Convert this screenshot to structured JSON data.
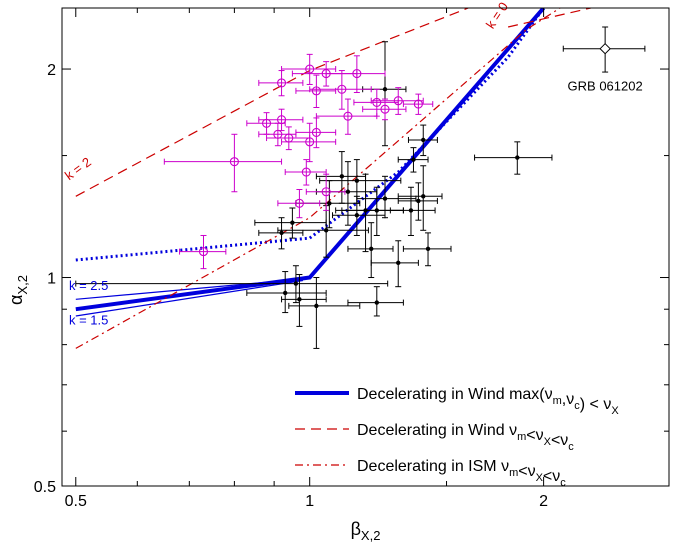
{
  "chart_data": {
    "type": "scatter",
    "x_scale": "log",
    "y_scale": "log",
    "xlim": [
      0.48,
      2.9
    ],
    "ylim": [
      0.5,
      2.45
    ],
    "xlabel": {
      "main": "β",
      "sub": "X,2"
    },
    "ylabel": {
      "main": "α",
      "sub": "X,2"
    },
    "x_ticks": [
      {
        "value": 0.5,
        "label": "0.5"
      },
      {
        "value": 1,
        "label": "1"
      },
      {
        "value": 2,
        "label": "2"
      }
    ],
    "x_minor_ticks": [
      0.6,
      0.7,
      0.8,
      0.9,
      1.5
    ],
    "y_ticks": [
      {
        "value": 0.5,
        "label": "0.5"
      },
      {
        "value": 1,
        "label": "1"
      },
      {
        "value": 2,
        "label": "2"
      }
    ],
    "y_minor_ticks": [
      0.6,
      0.7,
      0.8,
      0.9,
      1.5
    ],
    "colors": {
      "black": "#000000",
      "magenta": "#cc00cc",
      "blue": "#0000dd",
      "red": "#cc0000"
    },
    "models": [
      {
        "name": "Wind-max-thick",
        "style": "solid-thick",
        "color": "#0000dd",
        "points": [
          [
            0.5,
            0.9
          ],
          [
            1.0,
            1.0
          ],
          [
            2.0,
            2.45
          ]
        ]
      },
      {
        "name": "Wind-k2.5",
        "style": "solid-thin",
        "color": "#0000dd",
        "points": [
          [
            0.5,
            0.93
          ],
          [
            0.98,
            0.995
          ]
        ]
      },
      {
        "name": "Wind-k1.5",
        "style": "solid-thin",
        "color": "#0000dd",
        "points": [
          [
            0.5,
            0.88
          ],
          [
            0.98,
            0.99
          ]
        ]
      },
      {
        "name": "ISM-max-dotted",
        "style": "dotted",
        "color": "#0000dd",
        "points": [
          [
            0.5,
            1.06
          ],
          [
            1.0,
            1.14
          ],
          [
            1.3,
            1.42
          ],
          [
            1.8,
            2.08
          ],
          [
            2.0,
            2.45
          ]
        ]
      },
      {
        "name": "Wind-dashed-k2",
        "style": "dashed",
        "color": "#cc0000",
        "points": [
          [
            0.5,
            1.31
          ],
          [
            1.0,
            1.99
          ],
          [
            1.6,
            2.45
          ]
        ]
      },
      {
        "name": "Wind-dashed-k0",
        "style": "dashed",
        "color": "#cc0000",
        "points": [
          [
            1.8,
            2.3
          ],
          [
            2.3,
            2.45
          ]
        ]
      },
      {
        "name": "ISM-dashdot",
        "style": "dashdot",
        "color": "#cc0000",
        "points": [
          [
            0.5,
            0.79
          ],
          [
            1.0,
            1.22
          ],
          [
            1.9,
            2.28
          ],
          [
            2.1,
            2.45
          ]
        ]
      }
    ],
    "line_labels": [
      {
        "text": "k = 2",
        "color": "#cc0000",
        "x": 0.49,
        "y": 1.38,
        "rotate": -36
      },
      {
        "text": "k = 0",
        "color": "#cc0000",
        "x": 1.72,
        "y": 2.28,
        "rotate": -56
      },
      {
        "text": "k = 2.5",
        "color": "#0000dd",
        "x": 0.49,
        "y": 0.96,
        "rotate": 0
      },
      {
        "text": "k = 1.5",
        "color": "#0000dd",
        "x": 0.49,
        "y": 0.855,
        "rotate": 0
      }
    ],
    "series_black": [
      {
        "x": 0.93,
        "y": 0.95,
        "xerr": [
          0.1,
          0.12
        ],
        "yerr": [
          0.06,
          0.07
        ]
      },
      {
        "x": 0.96,
        "y": 0.98,
        "xerr": [
          0.46,
          0.3
        ],
        "yerr": [
          0.06,
          0.06
        ]
      },
      {
        "x": 1.02,
        "y": 0.91,
        "xerr": [
          0.08,
          0.14
        ],
        "yerr": [
          0.12,
          0.09
        ]
      },
      {
        "x": 0.97,
        "y": 0.93,
        "xerr": [
          0.05,
          0.08
        ],
        "yerr": [
          0.08,
          0.08
        ]
      },
      {
        "x": 1.22,
        "y": 0.92,
        "xerr": [
          0.1,
          0.1
        ],
        "yerr": [
          0.04,
          0.05
        ]
      },
      {
        "x": 0.92,
        "y": 1.16,
        "xerr": [
          0.06,
          0.06
        ],
        "yerr": [
          0.06,
          0.06
        ]
      },
      {
        "x": 0.95,
        "y": 1.2,
        "xerr": [
          0.1,
          0.1
        ],
        "yerr": [
          0.06,
          0.06
        ]
      },
      {
        "x": 1.06,
        "y": 1.28,
        "xerr": [
          0.1,
          0.1
        ],
        "yerr": [
          0.1,
          0.1
        ]
      },
      {
        "x": 1.1,
        "y": 1.4,
        "xerr": [
          0.08,
          0.08
        ],
        "yerr": [
          0.12,
          0.12
        ]
      },
      {
        "x": 1.12,
        "y": 1.33,
        "xerr": [
          0.1,
          0.1
        ],
        "yerr": [
          0.14,
          0.14
        ]
      },
      {
        "x": 1.15,
        "y": 1.38,
        "xerr": [
          0.12,
          0.16
        ],
        "yerr": [
          0.1,
          0.1
        ]
      },
      {
        "x": 1.18,
        "y": 1.25,
        "xerr": [
          0.1,
          0.14
        ],
        "yerr": [
          0.16,
          0.16
        ]
      },
      {
        "x": 1.2,
        "y": 1.1,
        "xerr": [
          0.08,
          0.08
        ],
        "yerr": [
          0.1,
          0.1
        ]
      },
      {
        "x": 1.22,
        "y": 1.25,
        "xerr": [
          0.12,
          0.1
        ],
        "yerr": [
          0.1,
          0.1
        ]
      },
      {
        "x": 1.25,
        "y": 1.3,
        "xerr": [
          0.1,
          0.12
        ],
        "yerr": [
          0.08,
          0.1
        ]
      },
      {
        "x": 1.3,
        "y": 1.05,
        "xerr": [
          0.1,
          0.08
        ],
        "yerr": [
          0.08,
          0.08
        ]
      },
      {
        "x": 1.35,
        "y": 1.25,
        "xerr": [
          0.08,
          0.1
        ],
        "yerr": [
          0.1,
          0.1
        ]
      },
      {
        "x": 1.38,
        "y": 1.29,
        "xerr": [
          0.08,
          0.08
        ],
        "yerr": [
          0.08,
          0.08
        ]
      },
      {
        "x": 1.4,
        "y": 1.31,
        "xerr": [
          0.1,
          0.08
        ],
        "yerr": [
          0.14,
          0.14
        ]
      },
      {
        "x": 1.36,
        "y": 1.48,
        "xerr": [
          0.06,
          0.06
        ],
        "yerr": [
          0.06,
          0.06
        ]
      },
      {
        "x": 1.42,
        "y": 1.1,
        "xerr": [
          0.1,
          0.1
        ],
        "yerr": [
          0.06,
          0.06
        ]
      },
      {
        "x": 1.4,
        "y": 1.58,
        "xerr": [
          0.06,
          0.06
        ],
        "yerr": [
          0.08,
          0.08
        ]
      },
      {
        "x": 1.25,
        "y": 1.87,
        "xerr": [
          0.08,
          0.08
        ],
        "yerr": [
          0.32,
          0.32
        ]
      },
      {
        "x": 1.85,
        "y": 1.49,
        "xerr": [
          0.22,
          0.2
        ],
        "yerr": [
          0.08,
          0.08
        ]
      },
      {
        "x": 1.15,
        "y": 1.23,
        "xerr": [
          0.08,
          0.1
        ],
        "yerr": [
          0.08,
          0.08
        ]
      },
      {
        "x": 1.05,
        "y": 1.17,
        "xerr": [
          0.14,
          0.14
        ],
        "yerr": [
          0.1,
          0.1
        ]
      }
    ],
    "series_magenta": [
      {
        "x": 0.73,
        "y": 1.09,
        "xerr": [
          0.05,
          0.05
        ],
        "yerr": [
          0.06,
          0.06
        ]
      },
      {
        "x": 0.8,
        "y": 1.47,
        "xerr": [
          0.15,
          0.12
        ],
        "yerr": [
          0.14,
          0.14
        ]
      },
      {
        "x": 0.88,
        "y": 1.67,
        "xerr": [
          0.05,
          0.05
        ],
        "yerr": [
          0.06,
          0.06
        ]
      },
      {
        "x": 0.91,
        "y": 1.61,
        "xerr": [
          0.05,
          0.05
        ],
        "yerr": [
          0.06,
          0.06
        ]
      },
      {
        "x": 0.92,
        "y": 1.69,
        "xerr": [
          0.06,
          0.06
        ],
        "yerr": [
          0.06,
          0.06
        ]
      },
      {
        "x": 0.92,
        "y": 1.91,
        "xerr": [
          0.06,
          0.06
        ],
        "yerr": [
          0.08,
          0.08
        ]
      },
      {
        "x": 0.94,
        "y": 1.59,
        "xerr": [
          0.06,
          0.06
        ],
        "yerr": [
          0.06,
          0.06
        ]
      },
      {
        "x": 0.97,
        "y": 1.28,
        "xerr": [
          0.06,
          0.06
        ],
        "yerr": [
          0.06,
          0.06
        ]
      },
      {
        "x": 0.99,
        "y": 1.42,
        "xerr": [
          0.06,
          0.06
        ],
        "yerr": [
          0.06,
          0.06
        ]
      },
      {
        "x": 1.0,
        "y": 1.57,
        "xerr": [
          0.08,
          0.08
        ],
        "yerr": [
          0.1,
          0.1
        ]
      },
      {
        "x": 1.0,
        "y": 2.0,
        "xerr": [
          0.08,
          0.08
        ],
        "yerr": [
          0.1,
          0.1
        ]
      },
      {
        "x": 1.02,
        "y": 1.62,
        "xerr": [
          0.06,
          0.06
        ],
        "yerr": [
          0.08,
          0.08
        ]
      },
      {
        "x": 1.02,
        "y": 1.86,
        "xerr": [
          0.06,
          0.06
        ],
        "yerr": [
          0.1,
          0.1
        ]
      },
      {
        "x": 1.05,
        "y": 1.33,
        "xerr": [
          0.06,
          0.06
        ],
        "yerr": [
          0.08,
          0.08
        ]
      },
      {
        "x": 1.05,
        "y": 1.97,
        "xerr": [
          0.1,
          0.1
        ],
        "yerr": [
          0.08,
          0.08
        ]
      },
      {
        "x": 1.1,
        "y": 1.87,
        "xerr": [
          0.1,
          0.1
        ],
        "yerr": [
          0.12,
          0.12
        ]
      },
      {
        "x": 1.12,
        "y": 1.71,
        "xerr": [
          0.1,
          0.1
        ],
        "yerr": [
          0.1,
          0.1
        ]
      },
      {
        "x": 1.15,
        "y": 1.97,
        "xerr": [
          0.1,
          0.1
        ],
        "yerr": [
          0.12,
          0.12
        ]
      },
      {
        "x": 1.22,
        "y": 1.79,
        "xerr": [
          0.08,
          0.08
        ],
        "yerr": [
          0.08,
          0.08
        ]
      },
      {
        "x": 1.25,
        "y": 1.75,
        "xerr": [
          0.08,
          0.08
        ],
        "yerr": [
          0.06,
          0.06
        ]
      },
      {
        "x": 1.3,
        "y": 1.8,
        "xerr": [
          0.1,
          0.1
        ],
        "yerr": [
          0.08,
          0.08
        ]
      },
      {
        "x": 1.38,
        "y": 1.78,
        "xerr": [
          0.06,
          0.06
        ],
        "yerr": [
          0.06,
          0.06
        ]
      }
    ],
    "grb_point": {
      "name": "GRB 061202",
      "x": 2.4,
      "y": 2.14,
      "xerr": [
        0.28,
        0.3
      ],
      "yerr": [
        0.16,
        0.16
      ],
      "color": "#000000"
    },
    "legend": {
      "placement": "bottom-right",
      "entries": [
        {
          "style": "solid-thick",
          "color": "#0000dd",
          "text": "Decelerating in Wind max(ν",
          "sub1": "m",
          "mid": ",ν",
          "sub2": "c",
          "tail": ") < ν",
          "sub3": "X",
          "end": ""
        },
        {
          "style": "dashed",
          "color": "#cc0000",
          "text": "Decelerating in Wind ν",
          "sub1": "m",
          "mid": "<ν",
          "sub2": "X",
          "tail": "<ν",
          "sub3": "c",
          "end": ""
        },
        {
          "style": "dashdot",
          "color": "#cc0000",
          "text": "Decelerating in ISM ν",
          "sub1": "m",
          "mid": "<ν",
          "sub2": "X",
          "tail": "<ν",
          "sub3": "c",
          "end": ""
        }
      ]
    }
  }
}
